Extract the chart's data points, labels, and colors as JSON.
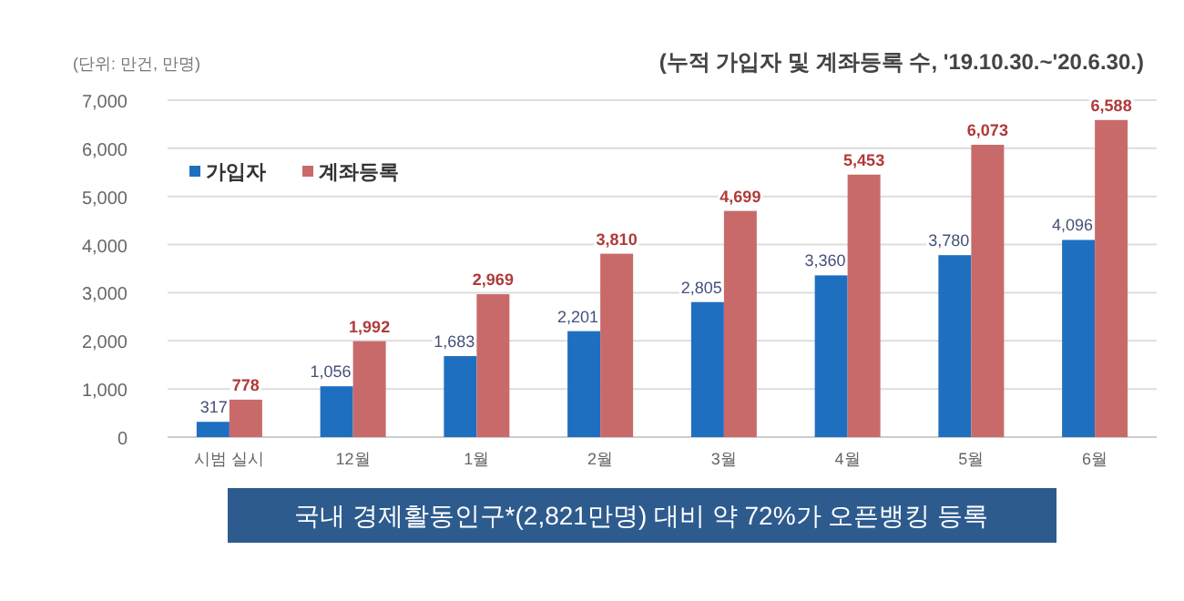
{
  "chart_data": {
    "type": "bar",
    "title": "(누적 가입자 및 계좌등록 수, '19.10.30.~'20.6.30.)",
    "annotations": [
      "(단위: 만건, 만명)",
      "국내 경제활동인구*(2,821만명) 대비 약 72%가 오픈뱅킹 등록"
    ],
    "categories": [
      "시범 실시",
      "12월",
      "1월",
      "2월",
      "3월",
      "4월",
      "5월",
      "6월"
    ],
    "series": [
      {
        "name": "가입자",
        "color": "#1f6fc0",
        "values": [
          317,
          1056,
          1683,
          2201,
          2805,
          3360,
          3780,
          4096
        ],
        "value_labels": [
          "317",
          "1,056",
          "1,683",
          "2,201",
          "2,805",
          "3,360",
          "3,780",
          "4,096"
        ]
      },
      {
        "name": "계좌등록",
        "color": "#c96a6a",
        "values": [
          778,
          1992,
          2969,
          3810,
          4699,
          5453,
          6073,
          6588
        ],
        "value_labels": [
          "778",
          "1,992",
          "2,969",
          "3,810",
          "4,699",
          "5,453",
          "6,073",
          "6,588"
        ]
      }
    ],
    "ylim": [
      0,
      7000
    ],
    "yticks": [
      {
        "value": 0,
        "label": "0"
      },
      {
        "value": 1000,
        "label": "1,000"
      },
      {
        "value": 2000,
        "label": "2,000"
      },
      {
        "value": 3000,
        "label": "3,000"
      },
      {
        "value": 4000,
        "label": "4,000"
      },
      {
        "value": 5000,
        "label": "5,000"
      },
      {
        "value": 6000,
        "label": "6,000"
      },
      {
        "value": 7000,
        "label": "7,000"
      }
    ],
    "grid": "y",
    "legend": "top left"
  }
}
